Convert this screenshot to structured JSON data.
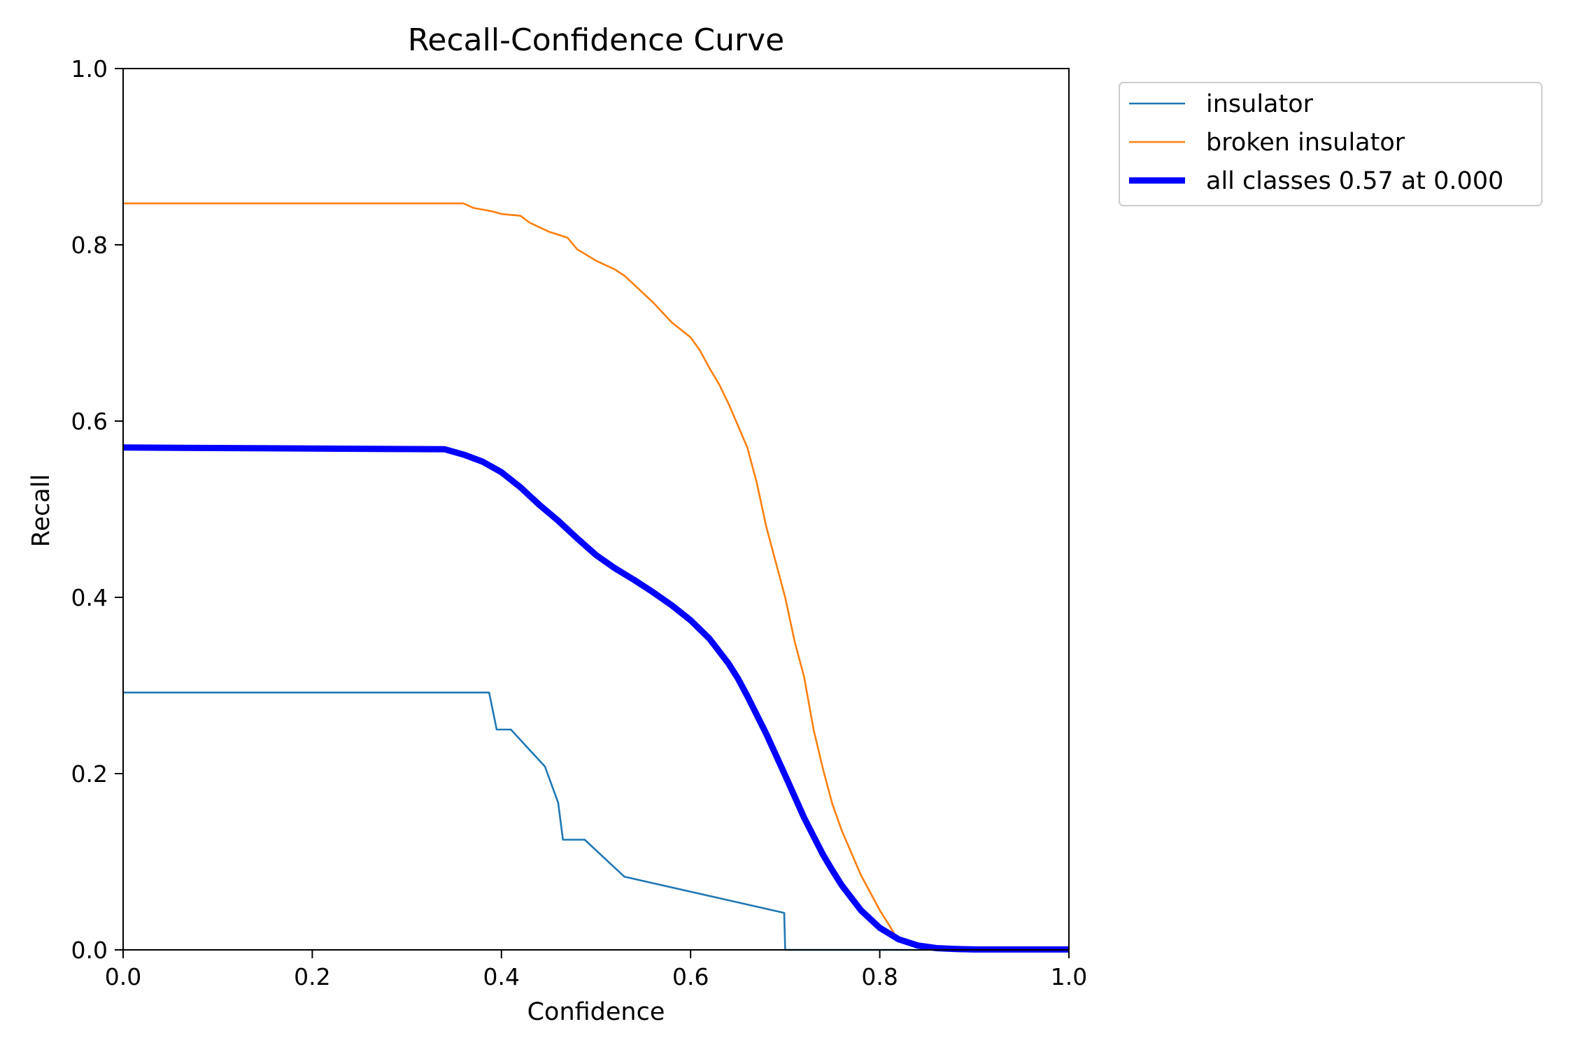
{
  "chart_data": {
    "type": "line",
    "title": "Recall-Confidence Curve",
    "xlabel": "Confidence",
    "ylabel": "Recall",
    "xlim": [
      0.0,
      1.0
    ],
    "ylim": [
      0.0,
      1.0
    ],
    "x_ticks": [
      0.0,
      0.2,
      0.4,
      0.6,
      0.8,
      1.0
    ],
    "y_ticks": [
      0.0,
      0.2,
      0.4,
      0.6,
      0.8,
      1.0
    ],
    "x_tick_labels": [
      "0.0",
      "0.2",
      "0.4",
      "0.6",
      "0.8",
      "1.0"
    ],
    "y_tick_labels": [
      "0.0",
      "0.2",
      "0.4",
      "0.6",
      "0.8",
      "1.0"
    ],
    "grid": false,
    "legend_placement": "outside-top-right",
    "series": [
      {
        "name": "insulator",
        "color": "#1f77b4",
        "linewidth": "thin",
        "x": [
          0.0,
          0.387,
          0.395,
          0.41,
          0.446,
          0.46,
          0.465,
          0.488,
          0.53,
          0.699,
          0.7,
          1.0
        ],
        "y": [
          0.292,
          0.292,
          0.25,
          0.25,
          0.208,
          0.167,
          0.125,
          0.125,
          0.083,
          0.042,
          0.0,
          0.0
        ]
      },
      {
        "name": "broken insulator",
        "color": "#ff7f0e",
        "linewidth": "thin",
        "x": [
          0.0,
          0.36,
          0.37,
          0.39,
          0.4,
          0.42,
          0.43,
          0.44,
          0.45,
          0.47,
          0.48,
          0.5,
          0.52,
          0.53,
          0.54,
          0.56,
          0.58,
          0.6,
          0.61,
          0.62,
          0.63,
          0.64,
          0.65,
          0.66,
          0.67,
          0.68,
          0.69,
          0.7,
          0.71,
          0.72,
          0.73,
          0.74,
          0.75,
          0.76,
          0.77,
          0.78,
          0.79,
          0.8,
          0.81,
          0.82
        ],
        "y": [
          0.847,
          0.847,
          0.842,
          0.838,
          0.835,
          0.833,
          0.825,
          0.82,
          0.815,
          0.808,
          0.795,
          0.782,
          0.772,
          0.765,
          0.755,
          0.735,
          0.712,
          0.695,
          0.68,
          0.66,
          0.642,
          0.62,
          0.595,
          0.57,
          0.53,
          0.48,
          0.44,
          0.4,
          0.35,
          0.31,
          0.25,
          0.205,
          0.165,
          0.135,
          0.11,
          0.085,
          0.065,
          0.045,
          0.028,
          0.01
        ]
      },
      {
        "name": "all classes 0.57 at 0.000",
        "color": "#0000ff",
        "linewidth": "thick",
        "x": [
          0.0,
          0.34,
          0.36,
          0.38,
          0.4,
          0.42,
          0.44,
          0.46,
          0.48,
          0.5,
          0.52,
          0.54,
          0.56,
          0.58,
          0.6,
          0.62,
          0.64,
          0.65,
          0.66,
          0.68,
          0.7,
          0.72,
          0.74,
          0.75,
          0.76,
          0.78,
          0.8,
          0.82,
          0.84,
          0.86,
          0.88,
          0.9,
          1.0
        ],
        "y": [
          0.57,
          0.568,
          0.562,
          0.554,
          0.542,
          0.525,
          0.505,
          0.487,
          0.467,
          0.448,
          0.433,
          0.42,
          0.406,
          0.391,
          0.374,
          0.353,
          0.325,
          0.308,
          0.288,
          0.245,
          0.198,
          0.15,
          0.108,
          0.09,
          0.073,
          0.045,
          0.025,
          0.012,
          0.005,
          0.002,
          0.001,
          0.0005,
          0.0005
        ]
      }
    ]
  }
}
